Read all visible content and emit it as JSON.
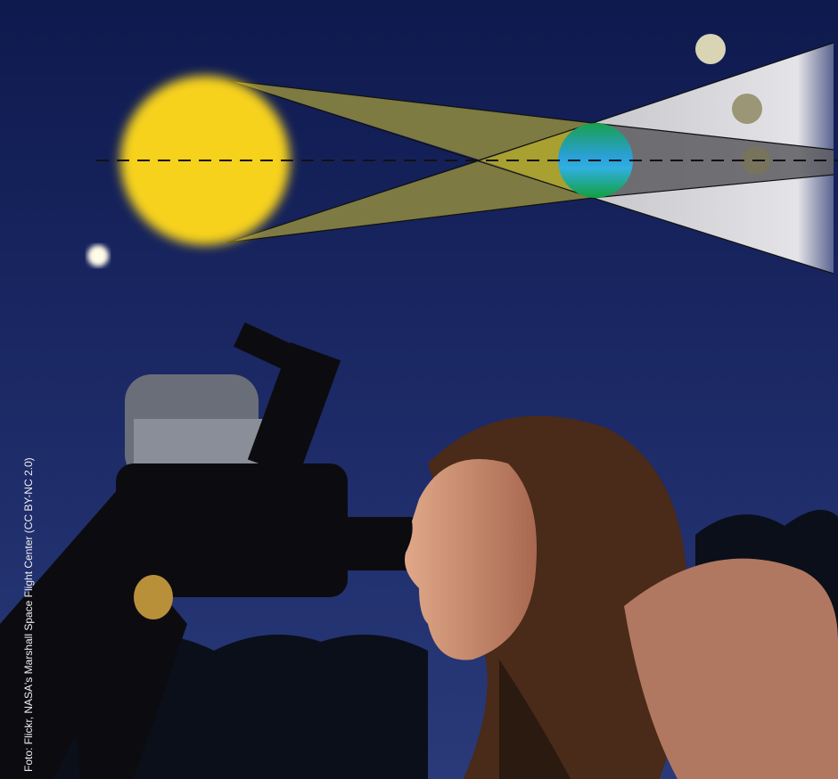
{
  "credit": "Foto: Flickr, NASA's Marshall Space Flight Center (CC BY-NC 2.0)"
}
